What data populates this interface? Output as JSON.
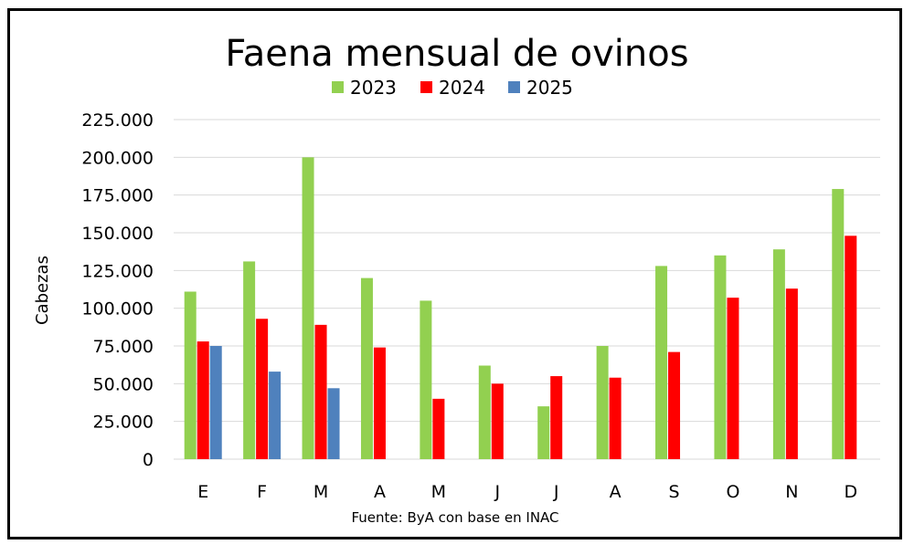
{
  "chart_data": {
    "type": "bar",
    "title": "Faena mensual de ovinos",
    "ylabel": "Cabezas",
    "xlabel": "",
    "source": "Fuente: ByA con base en INAC",
    "categories": [
      "E",
      "F",
      "M",
      "A",
      "M",
      "J",
      "J",
      "A",
      "S",
      "O",
      "N",
      "D"
    ],
    "ylim": [
      0,
      225000
    ],
    "yticks": [
      "0",
      "25.000",
      "50.000",
      "75.000",
      "100.000",
      "125.000",
      "150.000",
      "175.000",
      "200.000",
      "225.000"
    ],
    "grid": true,
    "legend_position": "top",
    "series": [
      {
        "name": "2023",
        "color": "#92d050",
        "values": [
          111000,
          131000,
          200000,
          120000,
          105000,
          62000,
          35000,
          75000,
          128000,
          135000,
          139000,
          179000
        ]
      },
      {
        "name": "2024",
        "color": "#ff0000",
        "values": [
          78000,
          93000,
          89000,
          74000,
          40000,
          50000,
          55000,
          54000,
          71000,
          107000,
          113000,
          148000
        ]
      },
      {
        "name": "2025",
        "color": "#4f81bd",
        "values": [
          75000,
          58000,
          47000,
          null,
          null,
          null,
          null,
          null,
          null,
          null,
          null,
          null
        ]
      }
    ]
  }
}
